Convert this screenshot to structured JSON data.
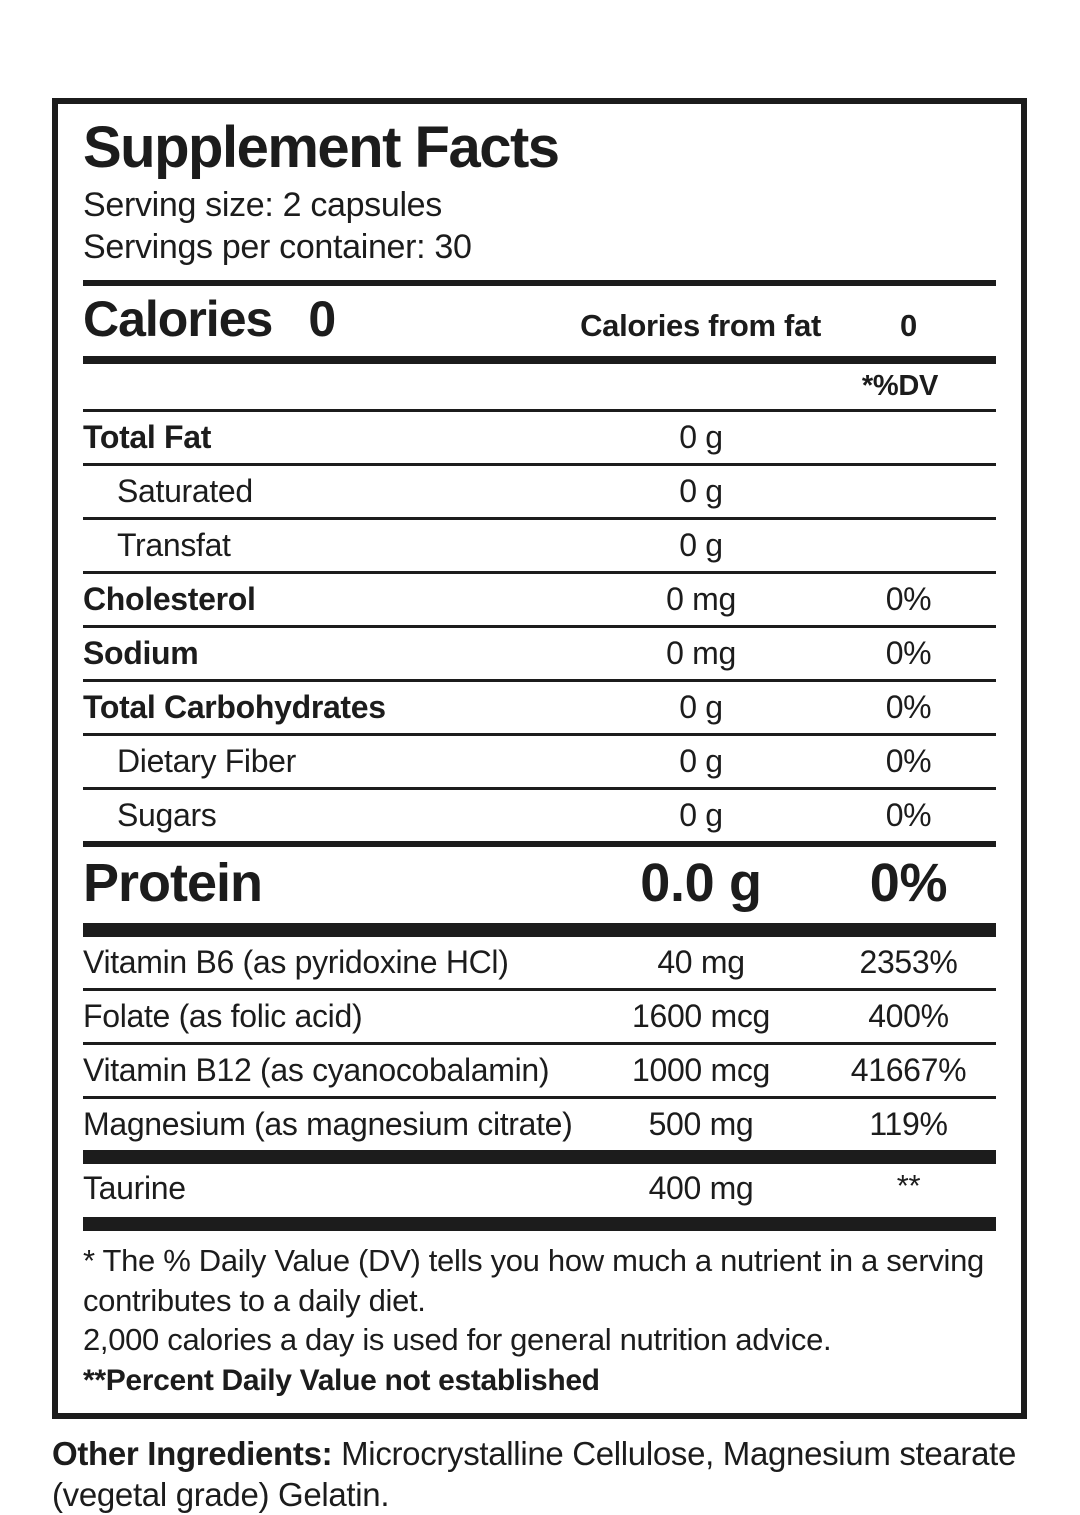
{
  "panel": {
    "title": "Supplement Facts",
    "serving_size": "Serving size: 2 capsules",
    "servings_per_container": "Servings per container: 30",
    "calories": {
      "label": "Calories",
      "value": "0",
      "from_fat_label": "Calories from fat",
      "from_fat_value": "0"
    },
    "dv_header": "*%DV",
    "nutrients": [
      {
        "name": "Total Fat",
        "amount": "0 g",
        "dv": ""
      },
      {
        "name": "Saturated",
        "amount": "0 g",
        "dv": ""
      },
      {
        "name": "Transfat",
        "amount": "0 g",
        "dv": ""
      },
      {
        "name": "Cholesterol",
        "amount": "0 mg",
        "dv": "0%"
      },
      {
        "name": "Sodium",
        "amount": "0 mg",
        "dv": "0%"
      },
      {
        "name": "Total Carbohydrates",
        "amount": "0 g",
        "dv": "0%"
      },
      {
        "name": "Dietary Fiber",
        "amount": "0 g",
        "dv": "0%"
      },
      {
        "name": "Sugars",
        "amount": "0 g",
        "dv": "0%"
      }
    ],
    "protein": {
      "name": "Protein",
      "amount": "0.0 g",
      "dv": "0%"
    },
    "supplements": [
      {
        "name": "Vitamin B6 (as pyridoxine HCl)",
        "amount": "40 mg",
        "dv": "2353%"
      },
      {
        "name": "Folate (as folic acid)",
        "amount": "1600 mcg",
        "dv": "400%"
      },
      {
        "name": "Vitamin B12 (as cyanocobalamin)",
        "amount": "1000 mcg",
        "dv": "41667%"
      },
      {
        "name": "Magnesium (as magnesium citrate)",
        "amount": "500 mg",
        "dv": "119%"
      }
    ],
    "taurine": {
      "name": "Taurine",
      "amount": "400 mg",
      "dv": "**"
    },
    "footnotes": {
      "daily_value": "* The % Daily Value (DV) tells you how much a nutrient in a serving contributes to a daily diet.",
      "calories_advice": "2,000 calories a day is used for general nutrition advice.",
      "not_established": "**Percent Daily Value not established"
    },
    "other_ingredients": {
      "label": "Other Ingredients:",
      "text": "Microcrystalline Cellulose, Magnesium stearate (vegetal grade) Gelatin."
    }
  },
  "colors": {
    "text": "#1c1c1c",
    "background": "#ffffff",
    "rule": "#1c1c1c"
  }
}
